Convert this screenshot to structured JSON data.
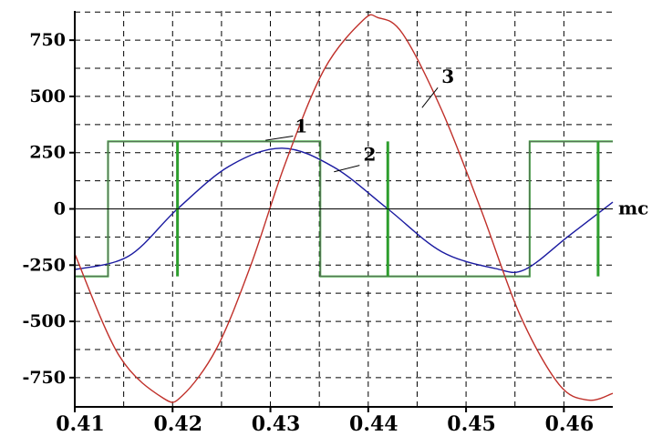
{
  "chart_data": {
    "type": "line",
    "xlim": [
      0.41,
      0.465
    ],
    "ylim": [
      -880,
      880
    ],
    "x_ticks": [
      0.41,
      0.42,
      0.43,
      0.44,
      0.45,
      0.46
    ],
    "x_tick_labels": [
      "0.41",
      "0.42",
      "0.43",
      "0.44",
      "0.45",
      "0.46"
    ],
    "y_ticks": [
      750,
      500,
      250,
      0,
      -250,
      -500,
      -750
    ],
    "y_tick_labels": [
      "750",
      "500",
      "250",
      "0",
      "-250",
      "-500",
      "-750"
    ],
    "x_unit_label": "mc",
    "grid": true,
    "series": [
      {
        "label": "1",
        "color": "#2e9e2e",
        "style": "square-wave",
        "amplitude": 300,
        "x": [
          0.41,
          0.4134,
          0.4134,
          0.4351,
          0.4351,
          0.4565,
          0.4565,
          0.465
        ],
        "y": [
          -300,
          -300,
          300,
          300,
          -300,
          -300,
          300,
          300
        ]
      },
      {
        "label": "2",
        "color": "#1a1aa0",
        "style": "sine",
        "amplitude": 270,
        "x": [
          0.41,
          0.4155,
          0.4205,
          0.4258,
          0.4312,
          0.4365,
          0.442,
          0.4475,
          0.453,
          0.456,
          0.4605,
          0.465
        ],
        "y": [
          -270,
          -210,
          0,
          190,
          270,
          185,
          0,
          -190,
          -265,
          -270,
          -120,
          30
        ]
      },
      {
        "label": "3",
        "color": "#c0302a",
        "style": "sine",
        "amplitude": 850,
        "x": [
          0.41,
          0.4145,
          0.419,
          0.421,
          0.4245,
          0.428,
          0.4315,
          0.4355,
          0.4395,
          0.441,
          0.4435,
          0.4475,
          0.4515,
          0.4555,
          0.4595,
          0.4625,
          0.465
        ],
        "y": [
          -200,
          -650,
          -840,
          -830,
          -620,
          -250,
          200,
          620,
          840,
          850,
          780,
          440,
          0,
          -470,
          -780,
          -850,
          -820
        ]
      }
    ],
    "spikes": {
      "color": "#2e9e2e",
      "x": [
        0.4205,
        0.442,
        0.4635
      ],
      "ymin": -300,
      "ymax": 300
    },
    "annotations": [
      {
        "text": "1",
        "x": 0.4325,
        "y": 340
      },
      {
        "text": "2",
        "x": 0.4395,
        "y": 215
      },
      {
        "text": "3",
        "x": 0.4475,
        "y": 560
      }
    ]
  }
}
